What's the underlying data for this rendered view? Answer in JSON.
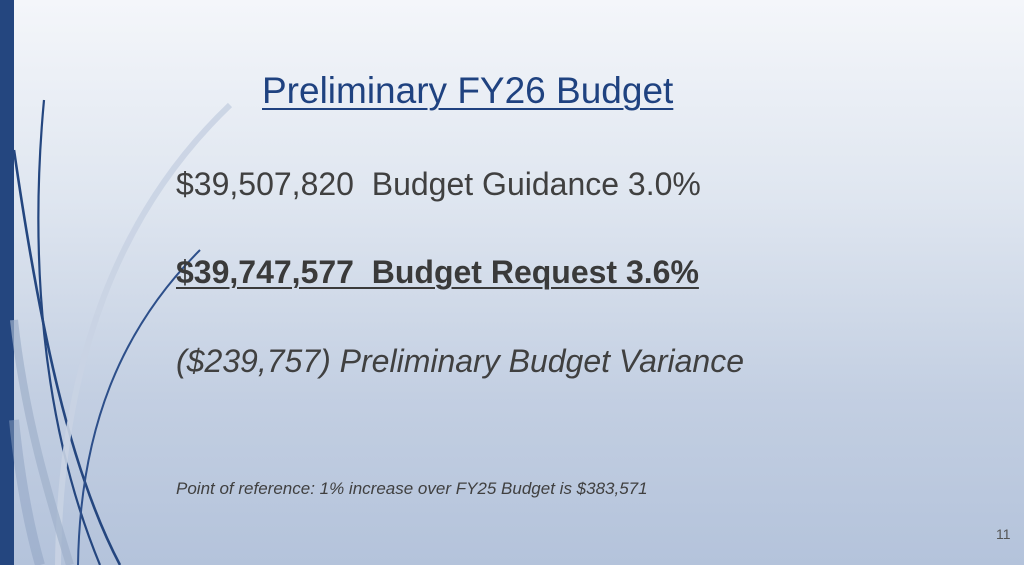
{
  "slide": {
    "title": "Preliminary FY26 Budget",
    "lines": [
      "$39,507,820  Budget Guidance 3.0%",
      "$39,747,577  Budget Request 3.6%",
      "($239,757) Preliminary Budget Variance"
    ],
    "note": "Point of reference: 1% increase over FY25 Budget is $383,571",
    "page_number": "11"
  },
  "colors": {
    "accent": "#24467f",
    "title": "#1f4280",
    "body_text": "#404040"
  }
}
